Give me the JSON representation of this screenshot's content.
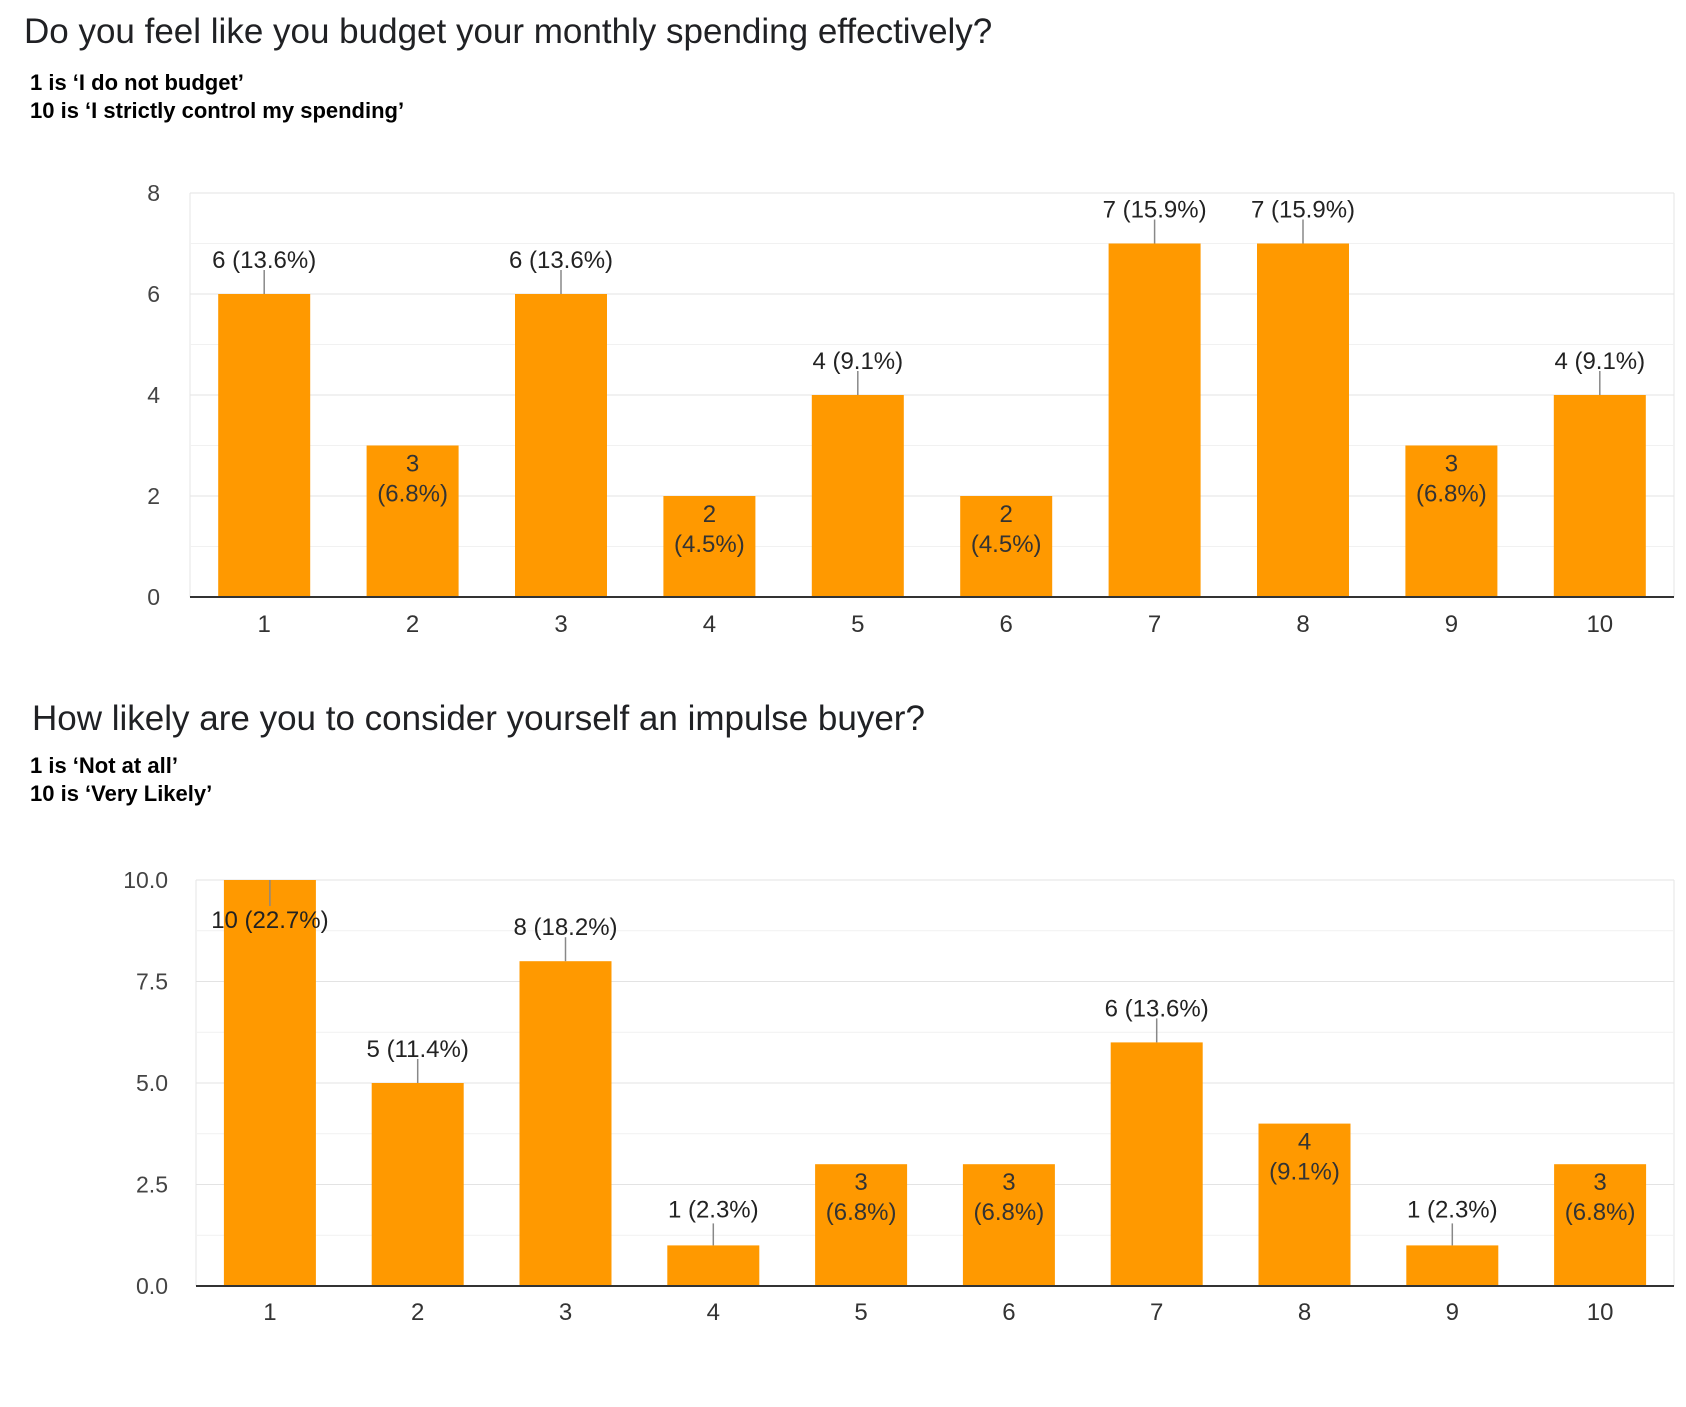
{
  "charts": [
    {
      "question": "Do you feel like you budget your monthly spending effectively?",
      "scale_low": "1 is ‘I do not budget’",
      "scale_high": "10 is ‘I strictly control my spending’"
    },
    {
      "question": "How likely are you to consider yourself an impulse buyer?",
      "scale_low": "1 is ‘Not at all’",
      "scale_high": "10 is ‘Very Likely’"
    }
  ],
  "chart_data": [
    {
      "type": "bar",
      "title": "Do you feel like you budget your monthly spending effectively?",
      "categories": [
        "1",
        "2",
        "3",
        "4",
        "5",
        "6",
        "7",
        "8",
        "9",
        "10"
      ],
      "values": [
        6,
        3,
        6,
        2,
        4,
        2,
        7,
        7,
        3,
        4
      ],
      "data_labels": [
        "6 (13.6%)",
        "3 (6.8%)",
        "6 (13.6%)",
        "2 (4.5%)",
        "4 (9.1%)",
        "2 (4.5%)",
        "7 (15.9%)",
        "7 (15.9%)",
        "3 (6.8%)",
        "4 (9.1%)"
      ],
      "y_ticks": [
        "0",
        "2",
        "4",
        "6",
        "8"
      ],
      "ylim": [
        0,
        8
      ],
      "grid": true,
      "bar_color": "#ff9900"
    },
    {
      "type": "bar",
      "title": "How likely are you to consider yourself an impulse buyer?",
      "categories": [
        "1",
        "2",
        "3",
        "4",
        "5",
        "6",
        "7",
        "8",
        "9",
        "10"
      ],
      "values": [
        10,
        5,
        8,
        1,
        3,
        3,
        6,
        4,
        1,
        3
      ],
      "data_labels": [
        "10 (22.7%)",
        "5 (11.4%)",
        "8 (18.2%)",
        "1 (2.3%)",
        "3 (6.8%)",
        "3 (6.8%)",
        "6 (13.6%)",
        "4 (9.1%)",
        "1 (2.3%)",
        "3 (6.8%)"
      ],
      "y_ticks": [
        "0.0",
        "2.5",
        "5.0",
        "7.5",
        "10.0"
      ],
      "ylim": [
        0,
        10
      ],
      "grid": true,
      "bar_color": "#ff9900"
    }
  ]
}
